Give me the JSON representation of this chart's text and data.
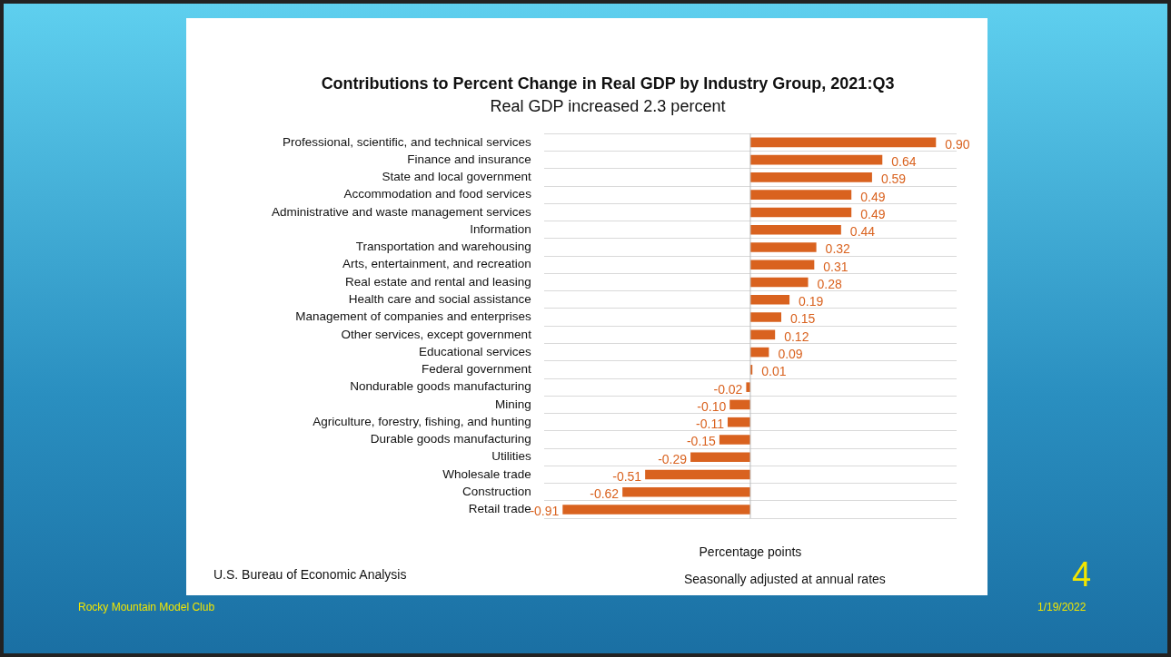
{
  "chart_data": {
    "type": "bar",
    "orientation": "horizontal",
    "title": "Contributions to Percent Change in Real GDP by Industry Group, 2021:Q3",
    "subtitle": "Real GDP increased 2.3 percent",
    "xlabel": "Percentage points",
    "categories": [
      "Professional, scientific, and technical services",
      "Finance and insurance",
      "State and local government",
      "Accommodation and food services",
      "Administrative and waste management services",
      "Information",
      "Transportation and warehousing",
      "Arts, entertainment, and recreation",
      "Real estate and rental and leasing",
      "Health care and social assistance",
      "Management of companies and enterprises",
      "Other services, except government",
      "Educational services",
      "Federal government",
      "Nondurable goods manufacturing",
      "Mining",
      "Agriculture, forestry, fishing, and hunting",
      "Durable goods manufacturing",
      "Utilities",
      "Wholesale trade",
      "Construction",
      "Retail trade"
    ],
    "values": [
      0.9,
      0.64,
      0.59,
      0.49,
      0.49,
      0.44,
      0.32,
      0.31,
      0.28,
      0.19,
      0.15,
      0.12,
      0.09,
      0.01,
      -0.02,
      -0.1,
      -0.11,
      -0.15,
      -0.29,
      -0.51,
      -0.62,
      -0.91
    ],
    "value_labels": [
      "0.90",
      "0.64",
      "0.59",
      "0.49",
      "0.49",
      "0.44",
      "0.32",
      "0.31",
      "0.28",
      "0.19",
      "0.15",
      "0.12",
      "0.09",
      "0.01",
      "-0.02",
      "-0.10",
      "-0.11",
      "-0.15",
      "-0.29",
      "-0.51",
      "-0.62",
      "-0.91"
    ],
    "color": "#d9621f",
    "grid": "y",
    "legend": false,
    "annotations": [
      "Seasonally adjusted at annual rates",
      "U.S. Bureau of Economic Analysis",
      "Rocky Mountain Model Club",
      "1/19/2022",
      "4"
    ]
  }
}
